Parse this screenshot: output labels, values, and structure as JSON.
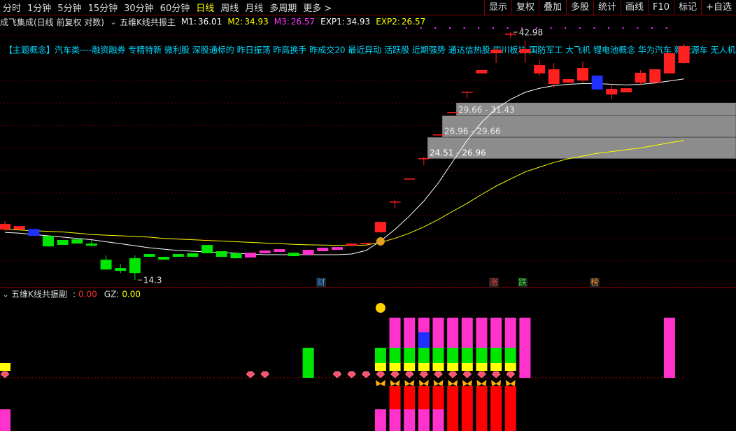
{
  "toolbar": {
    "periods": [
      "分时",
      "1分钟",
      "5分钟",
      "15分钟",
      "30分钟",
      "60分钟",
      "日线",
      "周线",
      "月线",
      "多周期",
      "更多 >"
    ],
    "active_period": 6,
    "tools": [
      "显示",
      "复权",
      "叠加",
      "多股",
      "统计",
      "画线",
      "F10",
      "标记",
      "+自选"
    ]
  },
  "header": {
    "stock": "成飞集成(日线 前复权 对数)",
    "indicator": "五维K线共振主",
    "values": [
      {
        "label": "M1:",
        "value": "36.01",
        "color": "#ffffff"
      },
      {
        "label": "M2:",
        "value": "34.93",
        "color": "#ffff00"
      },
      {
        "label": "M3:",
        "value": "26.57",
        "color": "#ff33ff"
      },
      {
        "label": "EXP1:",
        "value": "34.93",
        "color": "#ffffff"
      },
      {
        "label": "EXP2:",
        "value": "26.57",
        "color": "#ffff00"
      }
    ]
  },
  "concept_line": "【主题概念】汽车类----融资融券 专精特新 微利股 深股通标的 昨日振荡 昨高换手 昨成交20 最近异动 活跃股 近期强势 通达信热股 四川板块 国防军工 大飞机 锂电池概念 华为汽车 新能源车 无人机",
  "chart_data": {
    "type": "candlestick",
    "log_scale": true,
    "ylim": [
      13.87,
      43.79
    ],
    "candles": [
      {
        "open": 17.89,
        "high": 18.57,
        "low": 17.78,
        "close": 18.34,
        "color": "#ff2020"
      },
      {
        "open": 17.89,
        "high": 18.17,
        "low": 17.89,
        "close": 18.17,
        "color": "#ff2020"
      },
      {
        "open": 17.94,
        "high": 17.94,
        "low": 17.39,
        "close": 17.39,
        "color": "#2030ff"
      },
      {
        "open": 17.39,
        "high": 17.39,
        "low": 16.6,
        "close": 16.6,
        "color": "#00e600"
      },
      {
        "open": 17.08,
        "high": 17.08,
        "low": 16.71,
        "close": 16.71,
        "color": "#00e600"
      },
      {
        "open": 17.13,
        "high": 17.13,
        "low": 16.81,
        "close": 16.81,
        "color": "#00e600"
      },
      {
        "open": 16.81,
        "high": 17.08,
        "low": 16.6,
        "close": 16.65,
        "color": "#00e600"
      },
      {
        "open": 15.65,
        "high": 15.95,
        "low": 14.94,
        "close": 14.98,
        "color": "#00e600"
      },
      {
        "open": 15.08,
        "high": 15.36,
        "low": 14.75,
        "close": 14.89,
        "color": "#00e600"
      },
      {
        "open": 15.75,
        "high": 15.95,
        "low": 14.3,
        "close": 14.75,
        "color": "#00e600"
      },
      {
        "open": 16.05,
        "high": 16.05,
        "low": 15.85,
        "close": 15.85,
        "color": "#00e600"
      },
      {
        "open": 15.85,
        "high": 15.85,
        "low": 15.65,
        "close": 15.65,
        "color": "#00e600"
      },
      {
        "open": 16.05,
        "high": 16.05,
        "low": 15.85,
        "close": 15.85,
        "color": "#00e600"
      },
      {
        "open": 16.1,
        "high": 16.1,
        "low": 15.85,
        "close": 15.85,
        "color": "#00e600"
      },
      {
        "open": 16.71,
        "high": 16.71,
        "low": 16.1,
        "close": 16.1,
        "color": "#00e600"
      },
      {
        "open": 16.25,
        "high": 16.25,
        "low": 15.85,
        "close": 15.85,
        "color": "#00e600"
      },
      {
        "open": 16.1,
        "high": 16.1,
        "low": 15.75,
        "close": 15.75,
        "color": "#00e600"
      },
      {
        "open": 15.8,
        "high": 16.14,
        "low": 15.8,
        "close": 16.14,
        "color": "#ff33cc"
      },
      {
        "open": 16.1,
        "high": 16.3,
        "low": 16.1,
        "close": 16.3,
        "color": "#ff33cc"
      },
      {
        "open": 16.2,
        "high": 16.4,
        "low": 16.2,
        "close": 16.4,
        "color": "#ff33cc"
      },
      {
        "open": 16.14,
        "high": 16.14,
        "low": 15.9,
        "close": 15.9,
        "color": "#00e600"
      },
      {
        "open": 16.0,
        "high": 16.35,
        "low": 16.0,
        "close": 16.35,
        "color": "#ff33cc"
      },
      {
        "open": 16.25,
        "high": 16.5,
        "low": 16.25,
        "close": 16.5,
        "color": "#ff33cc"
      },
      {
        "open": 16.35,
        "high": 16.55,
        "low": 16.35,
        "close": 16.55,
        "color": "#ff33cc"
      },
      {
        "open": 16.65,
        "high": 16.81,
        "low": 16.65,
        "close": 16.81,
        "color": "#ff2020"
      },
      {
        "open": 16.76,
        "high": 16.86,
        "low": 16.76,
        "close": 16.86,
        "color": "#ff2020"
      },
      {
        "open": 17.67,
        "high": 18.51,
        "low": 17.67,
        "close": 18.51,
        "color": "#ff2020"
      },
      {
        "open": 20.26,
        "high": 20.39,
        "low": 19.64,
        "close": 20.26,
        "color": "#ff2020"
      },
      {
        "open": 22.44,
        "high": 22.44,
        "low": 22.44,
        "close": 22.44,
        "color": "#ff2020"
      },
      {
        "open": 24.56,
        "high": 24.71,
        "low": 23.81,
        "close": 24.56,
        "color": "#ff2020"
      },
      {
        "open": 27.3,
        "high": 27.3,
        "low": 27.3,
        "close": 27.3,
        "color": "#ff2020"
      },
      {
        "open": 30.15,
        "high": 30.15,
        "low": 30.15,
        "close": 30.15,
        "color": "#ff2020"
      },
      {
        "open": 33.0,
        "high": 33.0,
        "low": 32.09,
        "close": 33.0,
        "color": "#ff2020"
      },
      {
        "open": 35.78,
        "high": 36.34,
        "low": 35.78,
        "close": 36.34,
        "color": "#ff2020"
      },
      {
        "open": 39.15,
        "high": 40.14,
        "low": 37.49,
        "close": 39.77,
        "color": "#ff2020"
      },
      {
        "open": 42.71,
        "high": 42.98,
        "low": 41.92,
        "close": 42.71,
        "color": "#ff2020"
      },
      {
        "open": 39.15,
        "high": 41.41,
        "low": 37.49,
        "close": 39.89,
        "color": "#ff2020"
      },
      {
        "open": 35.78,
        "high": 38.07,
        "low": 35.45,
        "close": 37.14,
        "color": "#ff2020"
      },
      {
        "open": 34.15,
        "high": 37.49,
        "low": 33.62,
        "close": 36.45,
        "color": "#ff2020"
      },
      {
        "open": 34.36,
        "high": 34.9,
        "low": 34.36,
        "close": 34.9,
        "color": "#ff2020"
      },
      {
        "open": 34.68,
        "high": 37.72,
        "low": 34.36,
        "close": 36.68,
        "color": "#ff2020"
      },
      {
        "open": 35.45,
        "high": 35.45,
        "low": 33.31,
        "close": 33.31,
        "color": "#2030ff"
      },
      {
        "open": 32.59,
        "high": 34.15,
        "low": 31.89,
        "close": 33.41,
        "color": "#ff2020"
      },
      {
        "open": 32.9,
        "high": 33.51,
        "low": 32.9,
        "close": 33.51,
        "color": "#ff2020"
      },
      {
        "open": 34.36,
        "high": 36.34,
        "low": 33.94,
        "close": 35.89,
        "color": "#ff2020"
      },
      {
        "open": 34.36,
        "high": 36.45,
        "low": 34.36,
        "close": 36.45,
        "color": "#ff2020"
      },
      {
        "open": 35.78,
        "high": 39.15,
        "low": 35.78,
        "close": 39.15,
        "color": "#ff2020"
      },
      {
        "open": 37.49,
        "high": 40.89,
        "low": 37.25,
        "close": 40.39,
        "color": "#ff2020"
      }
    ],
    "series": [
      {
        "color": "#ffffff",
        "values": [
          17.67,
          17.6,
          17.5,
          17.4,
          17.3,
          17.2,
          17.1,
          16.95,
          16.8,
          16.65,
          16.5,
          16.4,
          16.3,
          16.25,
          16.2,
          16.15,
          16.1,
          16.05,
          16.0,
          16.0,
          16.0,
          16.0,
          16.0,
          16.0,
          16.05,
          16.3,
          17.0,
          17.9,
          19.0,
          20.3,
          22.0,
          24.2,
          26.6,
          28.8,
          30.6,
          31.9,
          32.9,
          33.5,
          33.9,
          34.1,
          34.2,
          34.2,
          34.1,
          34.0,
          34.1,
          34.3,
          34.6,
          34.93
        ]
      },
      {
        "color": "#ffff00",
        "values": [
          17.9,
          17.85,
          17.8,
          17.75,
          17.7,
          17.6,
          17.5,
          17.45,
          17.4,
          17.35,
          17.3,
          17.2,
          17.15,
          17.1,
          17.05,
          17.0,
          16.95,
          16.9,
          16.85,
          16.8,
          16.75,
          16.72,
          16.7,
          16.68,
          16.66,
          16.7,
          16.9,
          17.2,
          17.6,
          18.1,
          18.7,
          19.4,
          20.1,
          20.9,
          21.7,
          22.4,
          23.1,
          23.6,
          24.1,
          24.5,
          24.8,
          25.1,
          25.3,
          25.5,
          25.7,
          26.0,
          26.3,
          26.57
        ]
      }
    ],
    "zones": [
      {
        "label": "29.66 - 31.43",
        "low": 29.66,
        "high": 31.43
      },
      {
        "label": "26.96 - 29.66",
        "low": 26.96,
        "high": 29.66
      },
      {
        "label": "24.51 - 26.96",
        "low": 24.51,
        "high": 26.96
      }
    ]
  },
  "markers": [
    "财",
    "涨",
    "跌",
    "榜"
  ],
  "sub_panel": {
    "title": "五维K线共振副",
    "values": [
      {
        "label": ":",
        "value": "0.00",
        "color": "#ff3030"
      },
      {
        "label": "GZ:",
        "value": "0.00",
        "color": "#ffff00"
      }
    ]
  }
}
